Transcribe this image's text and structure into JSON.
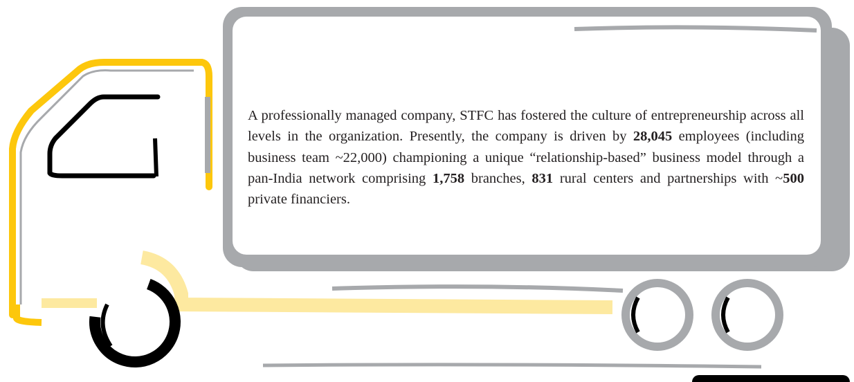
{
  "paragraph": [
    {
      "text": "A professionally managed company, STFC has fostered the culture of entrepreneurship across all levels in the organization. Presently, the company is driven by "
    },
    {
      "text": "28,045",
      "bold": true
    },
    {
      "text": " employees (including business team ~22,000) championing a unique “relationship-based” business model through a pan-India network comprising "
    },
    {
      "text": "1,758",
      "bold": true
    },
    {
      "text": " branches, "
    },
    {
      "text": "831",
      "bold": true
    },
    {
      "text": " rural centers and partnerships with ~"
    },
    {
      "text": "500",
      "bold": true
    },
    {
      "text": " private financiers."
    }
  ]
}
